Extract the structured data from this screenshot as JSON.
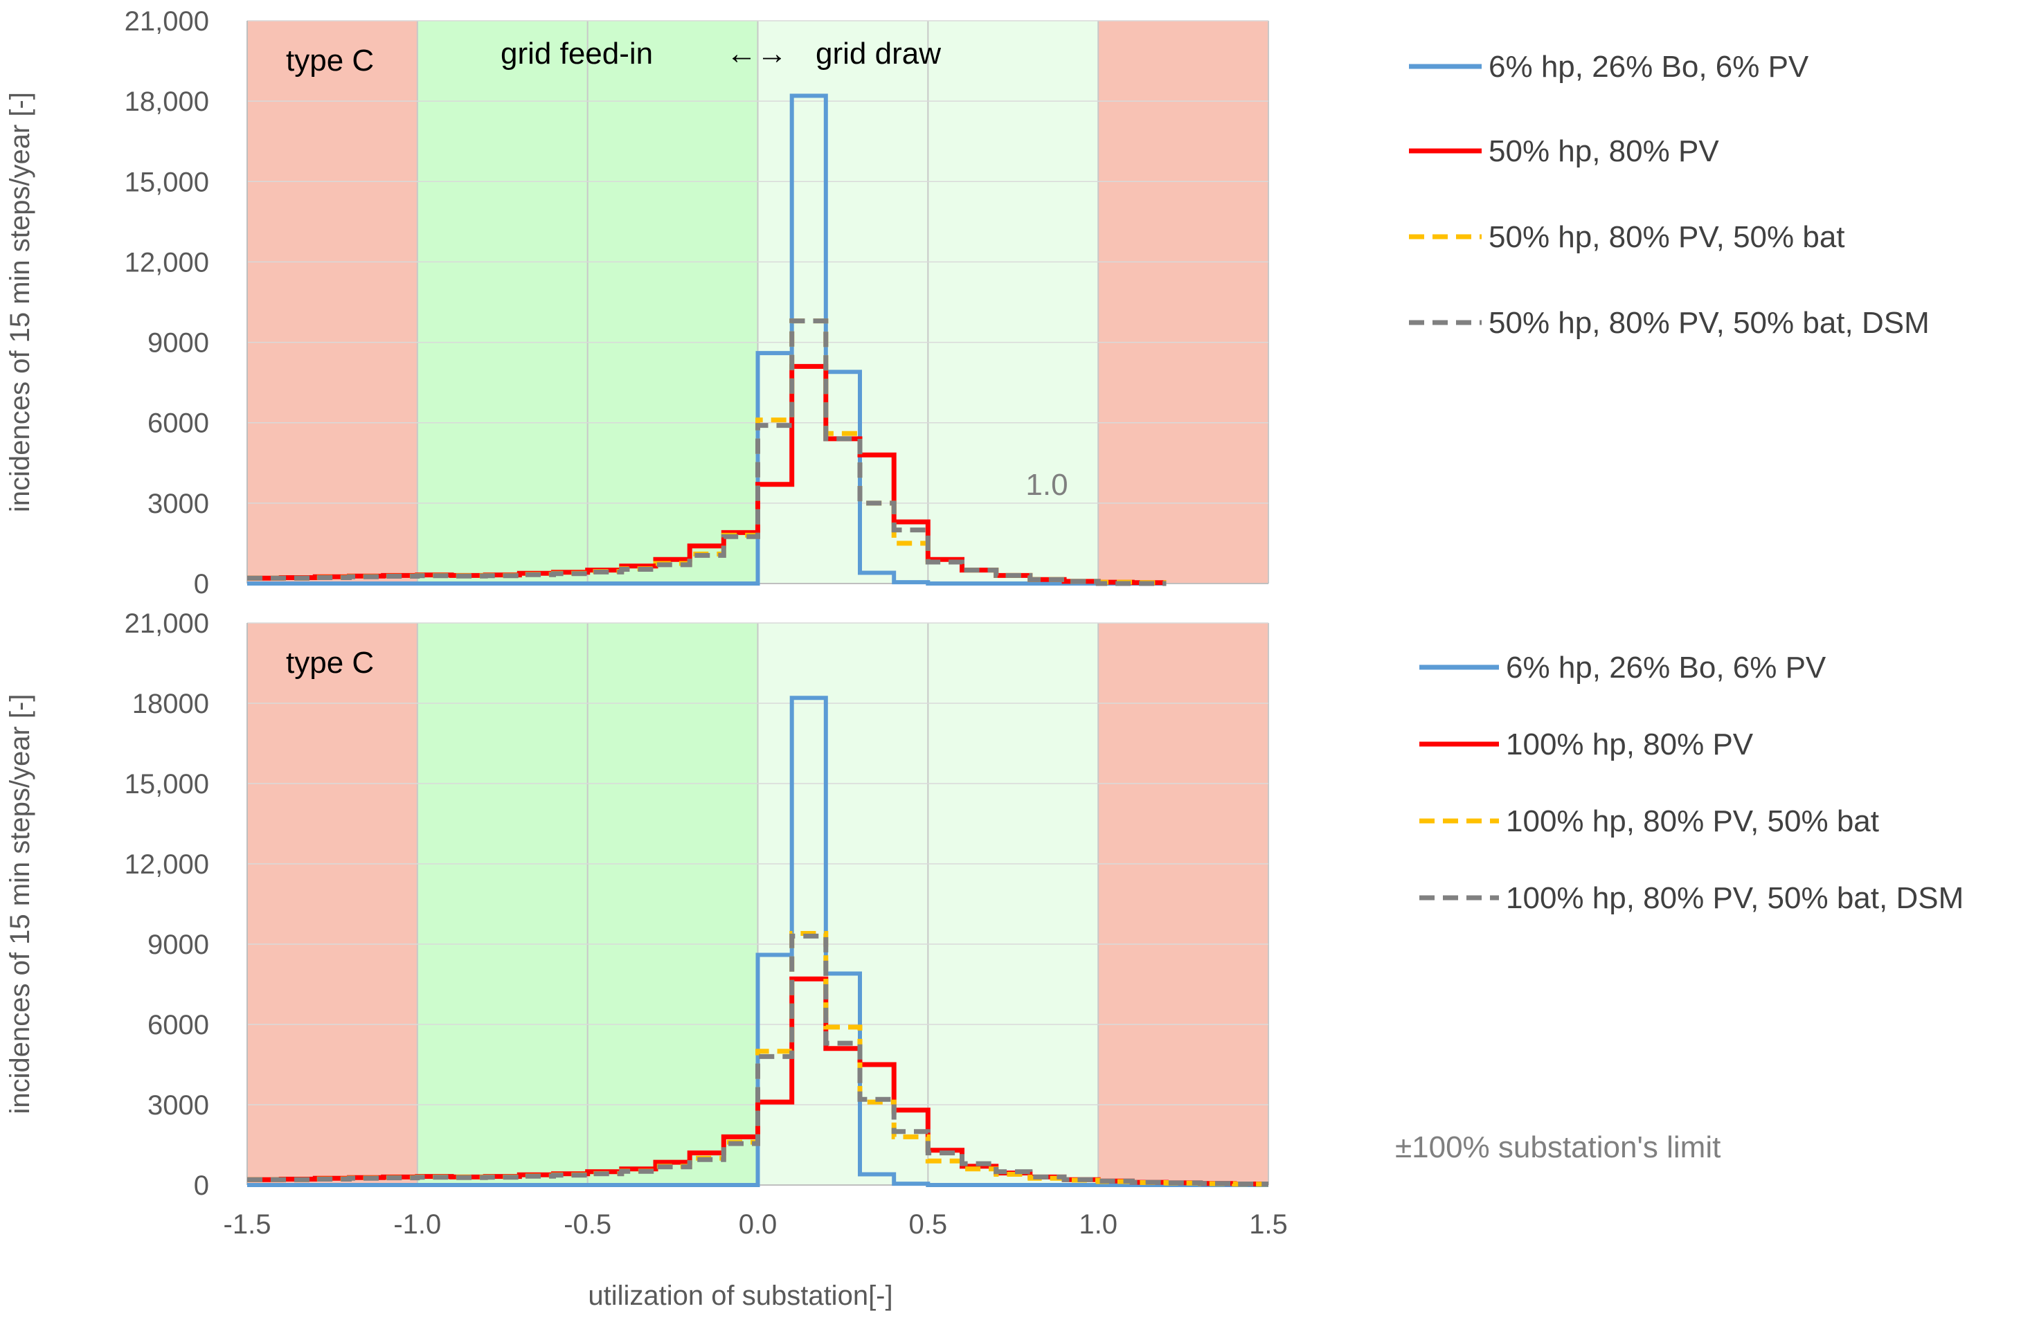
{
  "chart_data": [
    {
      "type": "line",
      "panel": "top",
      "step": true,
      "x_edges": [
        -1.5,
        -1.4,
        -1.3,
        -1.2,
        -1.1,
        -1.0,
        -0.9,
        -0.8,
        -0.7,
        -0.6,
        -0.5,
        -0.4,
        -0.3,
        -0.2,
        -0.1,
        0.0,
        0.1,
        0.2,
        0.3,
        0.4,
        0.5,
        0.6,
        0.7,
        0.8,
        0.9,
        1.0,
        1.1,
        1.2
      ],
      "xlim": [
        -1.5,
        1.5
      ],
      "ylim": [
        0,
        21000
      ],
      "x_ticks": [
        "-1.5",
        "-1.0",
        "-0.5",
        "0.0",
        "0.5",
        "1.0",
        "1.5"
      ],
      "y_ticks": [
        "0",
        "3000",
        "6000",
        "9000",
        "12,000",
        "15,000",
        "18,000",
        "21,000"
      ],
      "ylabel": "incidences of 15 min steps/year  [-]",
      "region_labels": {
        "type": "type C",
        "feed_in": "grid feed-in",
        "arrow": "←→",
        "draw": "grid draw",
        "limit_value": "1.0"
      },
      "regions": [
        {
          "from": -1.5,
          "to": -1.0,
          "color": "#f8c2b4"
        },
        {
          "from": -1.0,
          "to": 0.0,
          "color": "#cdfccd"
        },
        {
          "from": 0.0,
          "to": 1.0,
          "color": "#eafdea"
        },
        {
          "from": 1.0,
          "to": 1.5,
          "color": "#f8c2b4"
        }
      ],
      "series": [
        {
          "name": "6% hp, 26% Bo, 6% PV",
          "color": "#5b9bd5",
          "dash": "solid",
          "values": [
            0,
            0,
            0,
            0,
            0,
            0,
            0,
            0,
            0,
            0,
            0,
            0,
            0,
            0,
            0,
            8600,
            18200,
            7900,
            400,
            50,
            0,
            0,
            0,
            0,
            0,
            0,
            0
          ]
        },
        {
          "name": "50% hp, 80% PV",
          "color": "#ff0000",
          "dash": "solid",
          "values": [
            200,
            220,
            250,
            280,
            300,
            320,
            300,
            320,
            380,
            420,
            500,
            650,
            900,
            1400,
            1900,
            3700,
            8100,
            5400,
            4800,
            2300,
            900,
            500,
            300,
            150,
            80,
            50,
            30
          ]
        },
        {
          "name": "50% hp, 80% PV, 50% bat",
          "color": "#ffc000",
          "dash": "dash",
          "values": [
            200,
            200,
            230,
            260,
            280,
            300,
            290,
            300,
            340,
            380,
            450,
            550,
            750,
            1100,
            1800,
            6100,
            9800,
            5600,
            3000,
            1500,
            800,
            500,
            300,
            150,
            80,
            50,
            30
          ]
        },
        {
          "name": "50% hp, 80% PV, 50% bat, DSM",
          "color": "#808080",
          "dash": "dash",
          "values": [
            200,
            200,
            220,
            250,
            270,
            290,
            280,
            290,
            330,
            370,
            430,
            530,
            700,
            1050,
            1750,
            5900,
            9800,
            5400,
            3000,
            2000,
            800,
            500,
            300,
            150,
            80,
            0,
            0
          ]
        }
      ]
    },
    {
      "type": "line",
      "panel": "bottom",
      "step": true,
      "x_edges": [
        -1.5,
        -1.4,
        -1.3,
        -1.2,
        -1.1,
        -1.0,
        -0.9,
        -0.8,
        -0.7,
        -0.6,
        -0.5,
        -0.4,
        -0.3,
        -0.2,
        -0.1,
        0.0,
        0.1,
        0.2,
        0.3,
        0.4,
        0.5,
        0.6,
        0.7,
        0.8,
        0.9,
        1.0,
        1.1,
        1.2,
        1.3,
        1.4,
        1.5
      ],
      "xlim": [
        -1.5,
        1.5
      ],
      "ylim": [
        0,
        21000
      ],
      "x_ticks": [
        "-1.5",
        "-1.0",
        "-0.5",
        "0.0",
        "0.5",
        "1.0",
        "1.5"
      ],
      "y_ticks": [
        "0",
        "3000",
        "6000",
        "9000",
        "12,000",
        "15,000",
        "18000",
        "21,000"
      ],
      "xlabel": "utilization of substation[-]",
      "ylabel": "incidences of 15 min steps/year  [-]",
      "region_labels": {
        "type": "type C"
      },
      "limit_note": "±100% substation's limit",
      "regions": [
        {
          "from": -1.5,
          "to": -1.0,
          "color": "#f8c2b4"
        },
        {
          "from": -1.0,
          "to": 0.0,
          "color": "#cdfccd"
        },
        {
          "from": 0.0,
          "to": 1.0,
          "color": "#eafdea"
        },
        {
          "from": 1.0,
          "to": 1.5,
          "color": "#f8c2b4"
        }
      ],
      "series": [
        {
          "name": "6% hp, 26% Bo, 6% PV",
          "color": "#5b9bd5",
          "dash": "solid",
          "values": [
            0,
            0,
            0,
            0,
            0,
            0,
            0,
            0,
            0,
            0,
            0,
            0,
            0,
            0,
            0,
            8600,
            18200,
            7900,
            400,
            50,
            0,
            0,
            0,
            0,
            0,
            0,
            0,
            0,
            0,
            0
          ]
        },
        {
          "name": "100% hp, 80% PV",
          "color": "#ff0000",
          "dash": "solid",
          "values": [
            200,
            220,
            250,
            280,
            300,
            320,
            300,
            320,
            380,
            420,
            500,
            600,
            850,
            1200,
            1800,
            3100,
            7700,
            5100,
            4500,
            2800,
            1300,
            700,
            450,
            300,
            200,
            150,
            100,
            80,
            60,
            40
          ]
        },
        {
          "name": "100% hp, 80% PV, 50% bat",
          "color": "#ffc000",
          "dash": "dash",
          "values": [
            200,
            200,
            230,
            260,
            280,
            300,
            290,
            300,
            340,
            380,
            430,
            520,
            700,
            1000,
            1600,
            5000,
            9400,
            5900,
            3100,
            1800,
            900,
            600,
            400,
            250,
            180,
            130,
            90,
            70,
            50,
            30
          ]
        },
        {
          "name": "100% hp, 80% PV, 50% bat, DSM",
          "color": "#808080",
          "dash": "dash",
          "values": [
            200,
            200,
            220,
            250,
            270,
            290,
            280,
            290,
            330,
            370,
            420,
            510,
            680,
            950,
            1550,
            4800,
            9300,
            5300,
            3200,
            2000,
            1200,
            800,
            500,
            300,
            200,
            150,
            100,
            80,
            60,
            40
          ]
        }
      ]
    }
  ]
}
